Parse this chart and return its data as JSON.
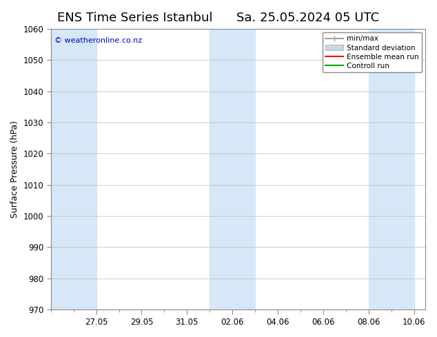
{
  "title": "ENS Time Series Istanbul",
  "title2": "Sa. 25.05.2024 05 UTC",
  "ylabel": "Surface Pressure (hPa)",
  "ylim": [
    970,
    1060
  ],
  "yticks": [
    970,
    980,
    990,
    1000,
    1010,
    1020,
    1030,
    1040,
    1050,
    1060
  ],
  "start_date": "2024-05-25",
  "end_date": "2024-06-10",
  "xlabels": [
    "27.05",
    "29.05",
    "31.05",
    "02.06",
    "04.06",
    "06.06",
    "08.06",
    "10.06"
  ],
  "xlabel_dates": [
    "2024-05-27",
    "2024-05-29",
    "2024-05-31",
    "2024-06-02",
    "2024-06-04",
    "2024-06-06",
    "2024-06-08",
    "2024-06-10"
  ],
  "weekend_bands": [
    [
      "2024-05-25",
      "2024-05-27"
    ],
    [
      "2024-06-01",
      "2024-06-03"
    ],
    [
      "2024-06-08",
      "2024-06-10"
    ]
  ],
  "band_color": "#d6e8f7",
  "background_color": "#ffffff",
  "plot_bg_color": "#ffffff",
  "legend_items": [
    "min/max",
    "Standard deviation",
    "Ensemble mean run",
    "Controll run"
  ],
  "legend_colors": [
    "#a0a0a0",
    "#c8d8e8",
    "#ff0000",
    "#00aa00"
  ],
  "watermark": "© weatheronline.co.nz",
  "watermark_color": "#0000cc",
  "title_fontsize": 13,
  "axis_fontsize": 9,
  "tick_fontsize": 8.5
}
